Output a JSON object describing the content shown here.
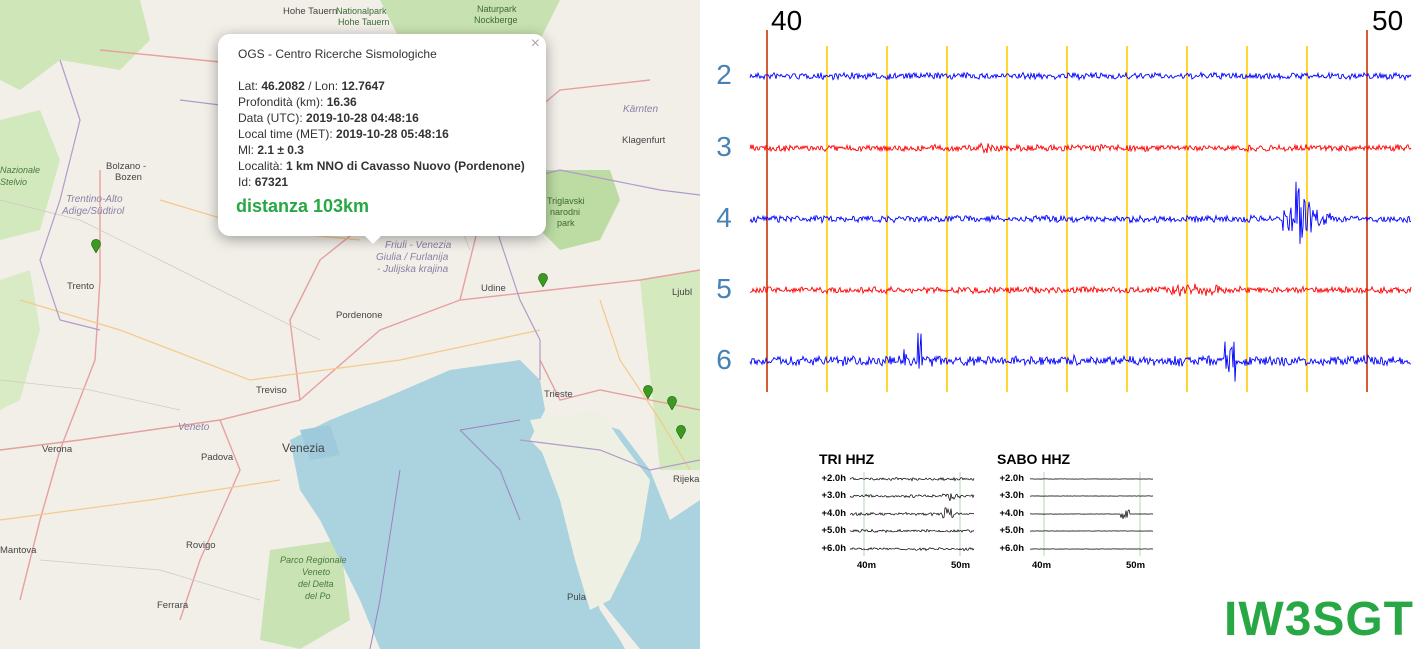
{
  "map": {
    "labels": {
      "hohe_tauern": "Hohe Tauern",
      "nationalpark": "Nationalpark",
      "hohe_tauern2": "Hohe Tauern",
      "naturpark": "Naturpark",
      "nockberge": "Nockberge",
      "karnten": "Kärnten",
      "klagenfurt": "Klagenfurt",
      "bolzano": "Bolzano -",
      "bozen": "Bozen",
      "trentino1": "Trentino-Alto",
      "trentino2": "Adige/Südtirol",
      "nazionale": "Nazionale",
      "stelvio": "Stelvio",
      "triglavski1": "Triglavski",
      "triglavski2": "narodni",
      "triglavski3": "park",
      "fvg1": "Friuli - Venezia",
      "fvg2": "Giulia / Furlanija",
      "fvg3": "- Julijska krajina",
      "udine": "Udine",
      "pordenone": "Pordenone",
      "trento": "Trento",
      "ljubljana": "Ljubl",
      "treviso": "Treviso",
      "trieste": "Trieste",
      "veneto": "Veneto",
      "venezia": "Venezia",
      "verona": "Verona",
      "padova": "Padova",
      "mantova": "Mantova",
      "rovigo": "Rovigo",
      "po1": "Parco Regionale",
      "po2": "Veneto",
      "po3": "del Delta",
      "po4": "del Po",
      "ferrara": "Ferrara",
      "rijeka": "Rijeka",
      "pula": "Pula"
    },
    "marker_color": "#3a9b1e"
  },
  "popup": {
    "title": "OGS - Centro Ricerche Sismologiche",
    "close": "×",
    "lat_label": "Lat:",
    "lat": "46.2082",
    "lon_label": "/ Lon:",
    "lon": "12.7647",
    "depth_label": "Profondità (km):",
    "depth": "16.36",
    "date_label": "Data (UTC):",
    "date": "2019-10-28 04:48:16",
    "local_label": "Local time (MET):",
    "local": "2019-10-28 05:48:16",
    "ml_label": "Ml:",
    "ml": "2.1 ± 0.3",
    "loc_label": "Località:",
    "loc": "1 km NNO di Cavasso Nuovo (Pordenone)",
    "id_label": "Id:",
    "id": "67321",
    "distance": "distanza 103km"
  },
  "seismogram": {
    "minute_labels": [
      "40",
      "50"
    ],
    "hours": [
      "2",
      "3",
      "4",
      "5",
      "6"
    ],
    "trace_colors": [
      "#0000ff",
      "#ff0000",
      "#0000ff",
      "#ff0000",
      "#0000ff"
    ],
    "grid_color": "#ffcc00",
    "marker_line_color": "#cc3300"
  },
  "mini": [
    {
      "title": "TRI HHZ",
      "rows": [
        "+2.0h",
        "+3.0h",
        "+4.0h",
        "+5.0h",
        "+6.0h"
      ],
      "ticks": [
        "40m",
        "50m"
      ]
    },
    {
      "title": "SABO HHZ",
      "rows": [
        "+2.0h",
        "+3.0h",
        "+4.0h",
        "+5.0h",
        "+6.0h"
      ],
      "ticks": [
        "40m",
        "50m"
      ]
    }
  ],
  "callsign": "IW3SGT",
  "colors": {
    "popup_accent": "#28a745",
    "hour_label": "#4682b4"
  }
}
